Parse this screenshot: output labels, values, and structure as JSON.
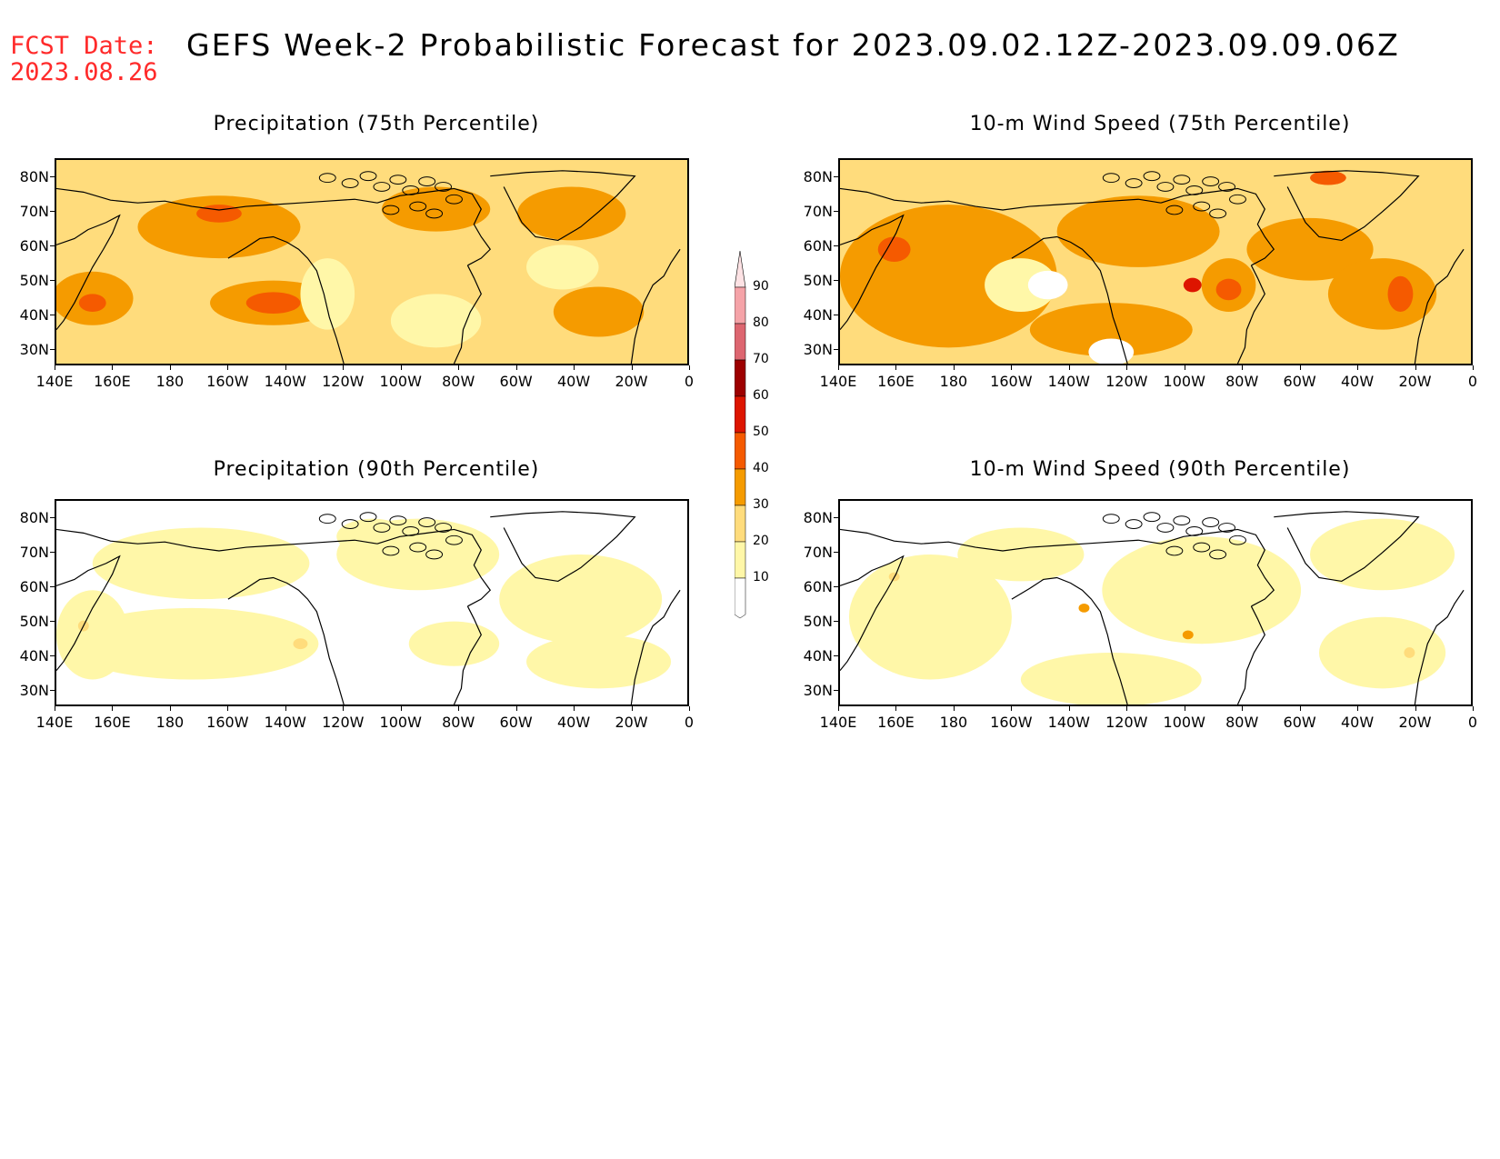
{
  "header": {
    "fcst_line1": "FCST Date:",
    "fcst_line2": "2023.08.26",
    "title": "GEFS Week-2 Probabilistic Forecast for 2023.09.02.12Z-2023.09.09.06Z"
  },
  "panels": [
    {
      "id": "precip75",
      "title": "Precipitation (75th Percentile)",
      "intensity": 0.75
    },
    {
      "id": "wind75",
      "title": "10-m Wind Speed (75th Percentile)",
      "intensity": 0.8
    },
    {
      "id": "precip90",
      "title": "Precipitation (90th Percentile)",
      "intensity": 0.2
    },
    {
      "id": "wind90",
      "title": "10-m Wind Speed (90th Percentile)",
      "intensity": 0.25
    }
  ],
  "axes": {
    "lat_labels": [
      "80N",
      "70N",
      "60N",
      "50N",
      "40N",
      "30N"
    ],
    "lon_labels": [
      "140E",
      "160E",
      "180",
      "160W",
      "140W",
      "120W",
      "100W",
      "80W",
      "60W",
      "40W",
      "20W",
      "0"
    ]
  },
  "colorbar": {
    "levels": [
      "90",
      "80",
      "70",
      "60",
      "50",
      "40",
      "30",
      "20",
      "10"
    ],
    "colors": [
      "#f5a3a8",
      "#dd6670",
      "#9d0000",
      "#dd1500",
      "#f55a00",
      "#f59b00",
      "#ffdc7c",
      "#fff7a8"
    ]
  },
  "colors": {
    "fcst_red": "#ff2a2a",
    "light_yellow": "#fff7a8",
    "yellow": "#ffdc7c",
    "orange": "#f59b00",
    "dark_orange": "#f55a00",
    "red": "#dd1500"
  }
}
